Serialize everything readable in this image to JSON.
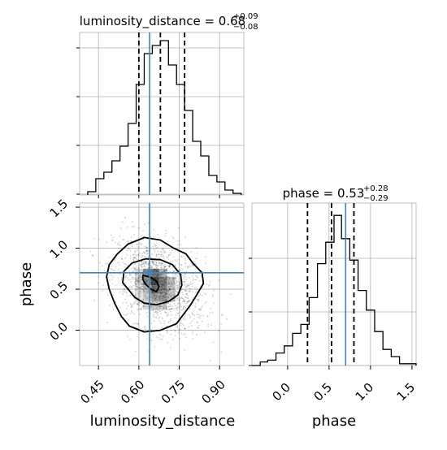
{
  "chart_data": {
    "type": "corner",
    "parameters": [
      "luminosity_distance",
      "phase"
    ],
    "truths": {
      "luminosity_distance": 0.64,
      "phase": 0.7
    },
    "luminosity_distance": {
      "title_prefix": "luminosity_distance = 0.68",
      "title_sup": "+0.09",
      "title_sub": "−0.08",
      "xlabel": "luminosity_distance",
      "xlim": [
        0.38,
        0.99
      ],
      "xticks": [
        0.45,
        0.6,
        0.75,
        0.9
      ],
      "xtick_labels": [
        "0.45",
        "0.60",
        "0.75",
        "0.90"
      ],
      "quantiles": [
        0.6,
        0.68,
        0.77
      ],
      "hist_bins": [
        0.41,
        0.44,
        0.47,
        0.5,
        0.53,
        0.56,
        0.59,
        0.62,
        0.65,
        0.68,
        0.71,
        0.74,
        0.77,
        0.8,
        0.83,
        0.86,
        0.89,
        0.92,
        0.95,
        0.98
      ],
      "hist_counts": [
        0.02,
        0.1,
        0.14,
        0.21,
        0.3,
        0.44,
        0.68,
        0.87,
        0.92,
        0.95,
        0.8,
        0.68,
        0.52,
        0.33,
        0.24,
        0.12,
        0.08,
        0.03,
        0.01
      ]
    },
    "phase": {
      "title_prefix": "phase = 0.53",
      "title_sup": "+0.28",
      "title_sub": "−0.29",
      "xlabel": "phase",
      "ylabel": "phase",
      "lim": [
        -0.43,
        1.55
      ],
      "ticks": [
        0.0,
        0.5,
        1.0,
        1.5
      ],
      "tick_labels": [
        "0.0",
        "0.5",
        "1.0",
        "1.5"
      ],
      "quantiles": [
        0.24,
        0.53,
        0.8
      ],
      "hist_bins": [
        -0.43,
        -0.33,
        -0.24,
        -0.14,
        -0.04,
        0.06,
        0.16,
        0.26,
        0.36,
        0.46,
        0.56,
        0.65,
        0.75,
        0.85,
        0.95,
        1.05,
        1.15,
        1.25,
        1.35,
        1.45,
        1.55
      ],
      "hist_counts": [
        0.0,
        0.02,
        0.03,
        0.07,
        0.11,
        0.18,
        0.23,
        0.38,
        0.57,
        0.69,
        0.84,
        0.71,
        0.59,
        0.42,
        0.31,
        0.19,
        0.09,
        0.05,
        0.01,
        0.01
      ]
    },
    "ytick_labels_2d": [
      "0.0",
      "0.5",
      "1.0",
      "1.5"
    ],
    "grid": true
  }
}
